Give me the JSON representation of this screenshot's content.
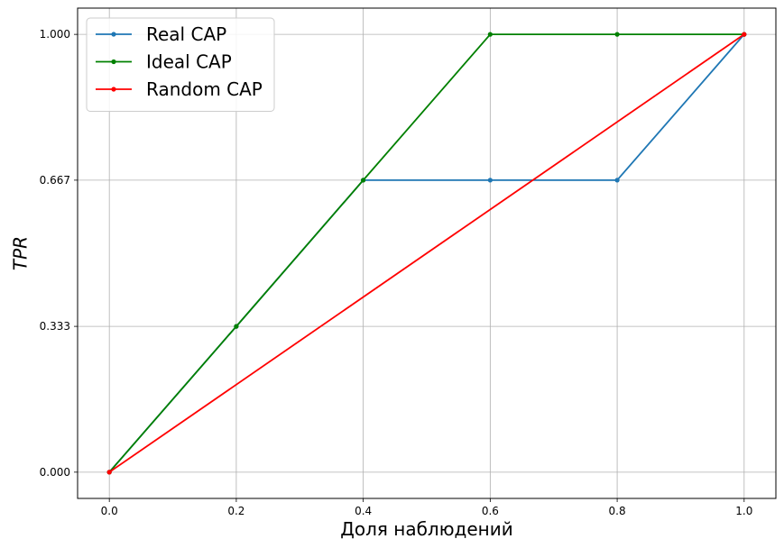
{
  "chart_data": {
    "type": "line",
    "xlabel": "Доля наблюдений",
    "ylabel": "TPR",
    "xlim": [
      -0.05,
      1.05
    ],
    "ylim": [
      -0.06,
      1.06
    ],
    "xticks": [
      0.0,
      0.2,
      0.4,
      0.6,
      0.8,
      1.0
    ],
    "xtick_labels": [
      "0.0",
      "0.2",
      "0.4",
      "0.6",
      "0.8",
      "1.0"
    ],
    "yticks": [
      0.0,
      0.333,
      0.667,
      1.0
    ],
    "ytick_labels": [
      "0.000",
      "0.333",
      "0.667",
      "1.000"
    ],
    "grid": true,
    "legend_position": "top-left",
    "series": [
      {
        "name": "Real CAP",
        "color": "#1f77b4",
        "x": [
          0.0,
          0.2,
          0.4,
          0.6,
          0.8,
          1.0
        ],
        "y": [
          0.0,
          0.333,
          0.667,
          0.667,
          0.667,
          1.0
        ]
      },
      {
        "name": "Ideal CAP",
        "color": "#008000",
        "x": [
          0.0,
          0.2,
          0.4,
          0.6,
          0.8,
          1.0
        ],
        "y": [
          0.0,
          0.333,
          0.667,
          1.0,
          1.0,
          1.0
        ]
      },
      {
        "name": "Random CAP",
        "color": "#ff0000",
        "x": [
          0.0,
          1.0
        ],
        "y": [
          0.0,
          1.0
        ]
      }
    ]
  }
}
